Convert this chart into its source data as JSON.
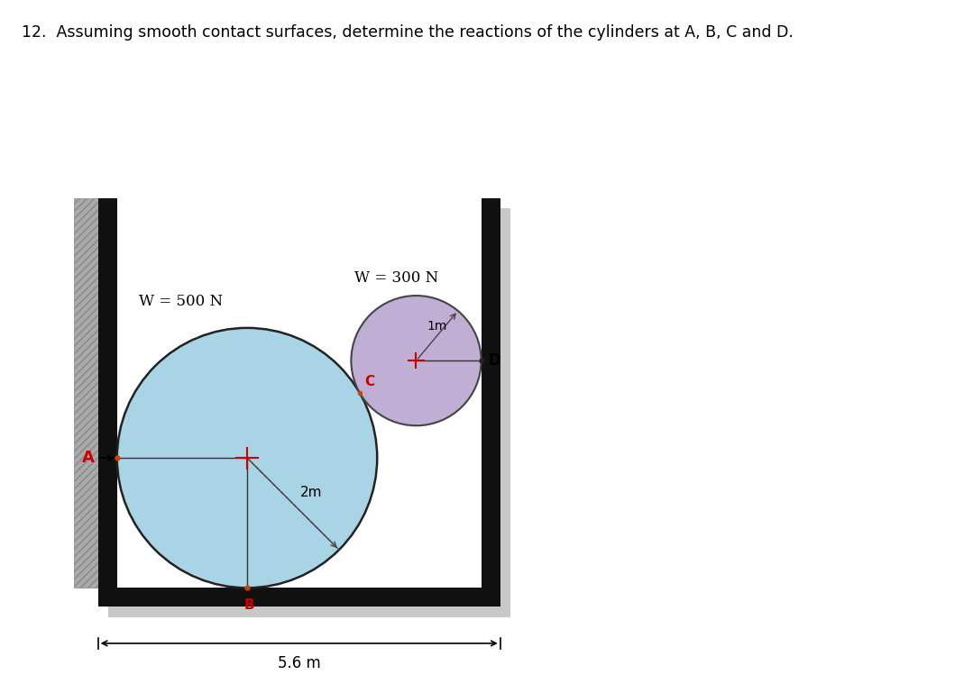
{
  "title": "12.  Assuming smooth contact surfaces, determine the reactions of the cylinders at A, B, C and D.",
  "title_fontsize": 12.5,
  "background_color": "#ffffff",
  "large_circle_r": 2.0,
  "large_circle_color": "#a8d4e6",
  "large_circle_edge": "#222222",
  "small_circle_r": 1.0,
  "small_circle_color": "#c0aed4",
  "small_circle_edge": "#444444",
  "W500_label": "W = 500 N",
  "W300_label": "W = 300 N",
  "dim_label": "5.6 m",
  "radius_large_label": "2m",
  "radius_small_label": "1m",
  "label_A": "A",
  "label_B": "B",
  "label_C": "C",
  "label_D": "D",
  "label_color_red": "#cc0000",
  "label_fontsize": 12,
  "wall_color": "#111111",
  "shadow_color": "#c8c8c8",
  "hatch_color": "#aaaaaa",
  "box_interior_color": "#ffffff"
}
